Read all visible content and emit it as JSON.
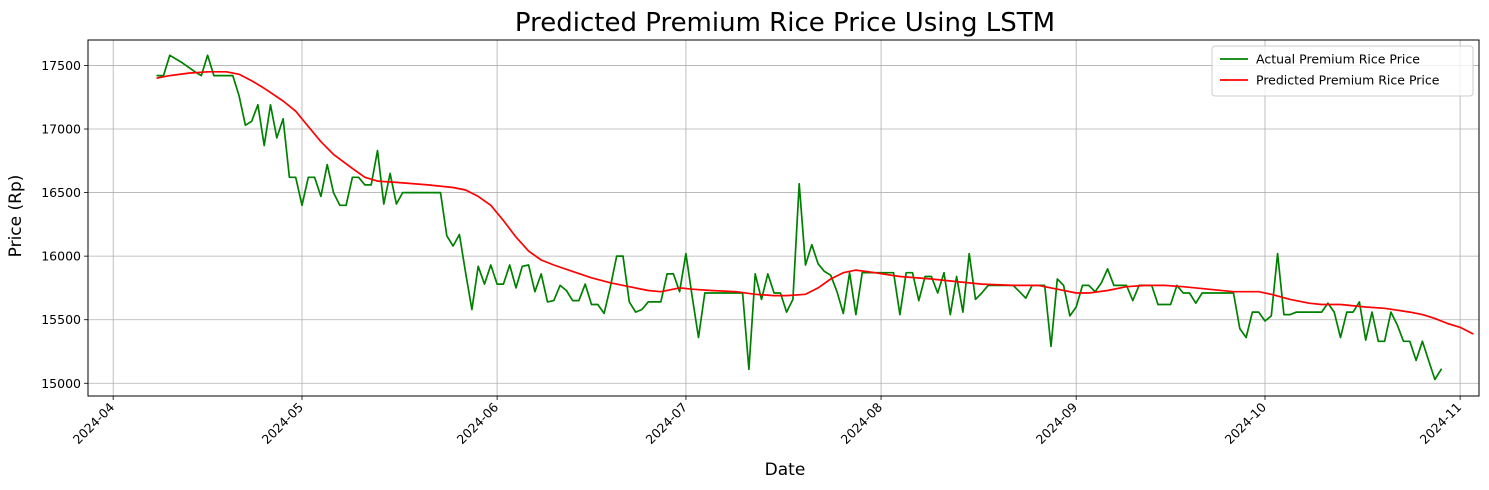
{
  "chart_data": {
    "type": "line",
    "title": "Predicted Premium Rice Price Using LSTM",
    "xlabel": "Date",
    "ylabel": "Price (Rp)",
    "grid": true,
    "legend_position": "top-right",
    "xlim": [
      "2024-03-28",
      "2024-11-04"
    ],
    "ylim": [
      14900,
      17700
    ],
    "x_ticks": [
      "2024-04-01",
      "2024-05-01",
      "2024-06-01",
      "2024-07-01",
      "2024-08-01",
      "2024-09-01",
      "2024-10-01",
      "2024-11-01"
    ],
    "x_tick_labels": [
      "2024-04",
      "2024-05",
      "2024-06",
      "2024-07",
      "2024-08",
      "2024-09",
      "2024-10",
      "2024-11"
    ],
    "y_ticks": [
      15000,
      15500,
      16000,
      16500,
      17000,
      17500
    ],
    "y_tick_labels": [
      "15000",
      "15500",
      "16000",
      "16500",
      "17000",
      "17500"
    ],
    "series": [
      {
        "name": "Actual Premium Rice Price",
        "color": "#008000",
        "points": [
          [
            "2024-04-08",
            17420
          ],
          [
            "2024-04-09",
            17420
          ],
          [
            "2024-04-10",
            17580
          ],
          [
            "2024-04-12",
            17520
          ],
          [
            "2024-04-14",
            17450
          ],
          [
            "2024-04-15",
            17420
          ],
          [
            "2024-04-16",
            17580
          ],
          [
            "2024-04-17",
            17420
          ],
          [
            "2024-04-18",
            17420
          ],
          [
            "2024-04-19",
            17420
          ],
          [
            "2024-04-20",
            17420
          ],
          [
            "2024-04-21",
            17260
          ],
          [
            "2024-04-22",
            17030
          ],
          [
            "2024-04-23",
            17060
          ],
          [
            "2024-04-24",
            17190
          ],
          [
            "2024-04-25",
            16870
          ],
          [
            "2024-04-26",
            17190
          ],
          [
            "2024-04-27",
            16930
          ],
          [
            "2024-04-28",
            17080
          ],
          [
            "2024-04-29",
            16620
          ],
          [
            "2024-04-30",
            16620
          ],
          [
            "2024-05-01",
            16400
          ],
          [
            "2024-05-02",
            16620
          ],
          [
            "2024-05-03",
            16620
          ],
          [
            "2024-05-04",
            16470
          ],
          [
            "2024-05-05",
            16720
          ],
          [
            "2024-05-06",
            16500
          ],
          [
            "2024-05-07",
            16400
          ],
          [
            "2024-05-08",
            16400
          ],
          [
            "2024-05-09",
            16620
          ],
          [
            "2024-05-10",
            16620
          ],
          [
            "2024-05-11",
            16560
          ],
          [
            "2024-05-12",
            16560
          ],
          [
            "2024-05-13",
            16830
          ],
          [
            "2024-05-14",
            16410
          ],
          [
            "2024-05-15",
            16650
          ],
          [
            "2024-05-16",
            16410
          ],
          [
            "2024-05-17",
            16500
          ],
          [
            "2024-05-22",
            16500
          ],
          [
            "2024-05-23",
            16500
          ],
          [
            "2024-05-24",
            16160
          ],
          [
            "2024-05-25",
            16080
          ],
          [
            "2024-05-26",
            16170
          ],
          [
            "2024-05-27",
            15870
          ],
          [
            "2024-05-28",
            15580
          ],
          [
            "2024-05-29",
            15920
          ],
          [
            "2024-05-30",
            15780
          ],
          [
            "2024-05-31",
            15930
          ],
          [
            "2024-06-01",
            15780
          ],
          [
            "2024-06-02",
            15780
          ],
          [
            "2024-06-03",
            15930
          ],
          [
            "2024-06-04",
            15750
          ],
          [
            "2024-06-05",
            15920
          ],
          [
            "2024-06-06",
            15930
          ],
          [
            "2024-06-07",
            15720
          ],
          [
            "2024-06-08",
            15860
          ],
          [
            "2024-06-09",
            15640
          ],
          [
            "2024-06-10",
            15650
          ],
          [
            "2024-06-11",
            15770
          ],
          [
            "2024-06-12",
            15730
          ],
          [
            "2024-06-13",
            15650
          ],
          [
            "2024-06-14",
            15650
          ],
          [
            "2024-06-15",
            15780
          ],
          [
            "2024-06-16",
            15620
          ],
          [
            "2024-06-17",
            15620
          ],
          [
            "2024-06-18",
            15550
          ],
          [
            "2024-06-19",
            15760
          ],
          [
            "2024-06-20",
            16000
          ],
          [
            "2024-06-21",
            16000
          ],
          [
            "2024-06-22",
            15640
          ],
          [
            "2024-06-23",
            15560
          ],
          [
            "2024-06-24",
            15580
          ],
          [
            "2024-06-25",
            15640
          ],
          [
            "2024-06-26",
            15640
          ],
          [
            "2024-06-27",
            15640
          ],
          [
            "2024-06-28",
            15860
          ],
          [
            "2024-06-29",
            15860
          ],
          [
            "2024-06-30",
            15720
          ],
          [
            "2024-07-01",
            16020
          ],
          [
            "2024-07-02",
            15680
          ],
          [
            "2024-07-03",
            15360
          ],
          [
            "2024-07-04",
            15710
          ],
          [
            "2024-07-06",
            15710
          ],
          [
            "2024-07-08",
            15710
          ],
          [
            "2024-07-10",
            15710
          ],
          [
            "2024-07-11",
            15110
          ],
          [
            "2024-07-12",
            15860
          ],
          [
            "2024-07-13",
            15660
          ],
          [
            "2024-07-14",
            15860
          ],
          [
            "2024-07-15",
            15710
          ],
          [
            "2024-07-16",
            15710
          ],
          [
            "2024-07-17",
            15560
          ],
          [
            "2024-07-18",
            15660
          ],
          [
            "2024-07-19",
            16570
          ],
          [
            "2024-07-20",
            15930
          ],
          [
            "2024-07-21",
            16090
          ],
          [
            "2024-07-22",
            15940
          ],
          [
            "2024-07-23",
            15880
          ],
          [
            "2024-07-24",
            15850
          ],
          [
            "2024-07-25",
            15720
          ],
          [
            "2024-07-26",
            15550
          ],
          [
            "2024-07-27",
            15870
          ],
          [
            "2024-07-28",
            15540
          ],
          [
            "2024-07-29",
            15870
          ],
          [
            "2024-07-30",
            15870
          ],
          [
            "2024-08-01",
            15870
          ],
          [
            "2024-08-02",
            15870
          ],
          [
            "2024-08-03",
            15870
          ],
          [
            "2024-08-04",
            15540
          ],
          [
            "2024-08-05",
            15870
          ],
          [
            "2024-08-06",
            15870
          ],
          [
            "2024-08-07",
            15650
          ],
          [
            "2024-08-08",
            15840
          ],
          [
            "2024-08-09",
            15840
          ],
          [
            "2024-08-10",
            15710
          ],
          [
            "2024-08-11",
            15870
          ],
          [
            "2024-08-12",
            15540
          ],
          [
            "2024-08-13",
            15840
          ],
          [
            "2024-08-14",
            15560
          ],
          [
            "2024-08-15",
            16020
          ],
          [
            "2024-08-16",
            15660
          ],
          [
            "2024-08-17",
            15710
          ],
          [
            "2024-08-18",
            15770
          ],
          [
            "2024-08-20",
            15770
          ],
          [
            "2024-08-22",
            15770
          ],
          [
            "2024-08-23",
            15720
          ],
          [
            "2024-08-24",
            15670
          ],
          [
            "2024-08-25",
            15770
          ],
          [
            "2024-08-26",
            15770
          ],
          [
            "2024-08-27",
            15770
          ],
          [
            "2024-08-28",
            15290
          ],
          [
            "2024-08-29",
            15820
          ],
          [
            "2024-08-30",
            15770
          ],
          [
            "2024-08-31",
            15530
          ],
          [
            "2024-09-01",
            15600
          ],
          [
            "2024-09-02",
            15770
          ],
          [
            "2024-09-03",
            15770
          ],
          [
            "2024-09-04",
            15720
          ],
          [
            "2024-09-05",
            15790
          ],
          [
            "2024-09-06",
            15900
          ],
          [
            "2024-09-07",
            15770
          ],
          [
            "2024-09-08",
            15770
          ],
          [
            "2024-09-09",
            15770
          ],
          [
            "2024-09-10",
            15650
          ],
          [
            "2024-09-11",
            15770
          ],
          [
            "2024-09-12",
            15770
          ],
          [
            "2024-09-13",
            15770
          ],
          [
            "2024-09-14",
            15620
          ],
          [
            "2024-09-15",
            15620
          ],
          [
            "2024-09-16",
            15620
          ],
          [
            "2024-09-17",
            15770
          ],
          [
            "2024-09-18",
            15710
          ],
          [
            "2024-09-19",
            15710
          ],
          [
            "2024-09-20",
            15630
          ],
          [
            "2024-09-21",
            15710
          ],
          [
            "2024-09-24",
            15710
          ],
          [
            "2024-09-25",
            15710
          ],
          [
            "2024-09-26",
            15710
          ],
          [
            "2024-09-27",
            15430
          ],
          [
            "2024-09-28",
            15360
          ],
          [
            "2024-09-29",
            15560
          ],
          [
            "2024-09-30",
            15560
          ],
          [
            "2024-10-01",
            15490
          ],
          [
            "2024-10-02",
            15530
          ],
          [
            "2024-10-03",
            16020
          ],
          [
            "2024-10-04",
            15540
          ],
          [
            "2024-10-05",
            15540
          ],
          [
            "2024-10-06",
            15560
          ],
          [
            "2024-10-07",
            15560
          ],
          [
            "2024-10-08",
            15560
          ],
          [
            "2024-10-09",
            15560
          ],
          [
            "2024-10-10",
            15560
          ],
          [
            "2024-10-11",
            15630
          ],
          [
            "2024-10-12",
            15560
          ],
          [
            "2024-10-13",
            15360
          ],
          [
            "2024-10-14",
            15560
          ],
          [
            "2024-10-15",
            15560
          ],
          [
            "2024-10-16",
            15640
          ],
          [
            "2024-10-17",
            15340
          ],
          [
            "2024-10-18",
            15560
          ],
          [
            "2024-10-19",
            15330
          ],
          [
            "2024-10-20",
            15330
          ],
          [
            "2024-10-21",
            15560
          ],
          [
            "2024-10-22",
            15460
          ],
          [
            "2024-10-23",
            15330
          ],
          [
            "2024-10-24",
            15330
          ],
          [
            "2024-10-25",
            15180
          ],
          [
            "2024-10-26",
            15330
          ],
          [
            "2024-10-27",
            15180
          ],
          [
            "2024-10-28",
            15030
          ],
          [
            "2024-10-29",
            15110
          ]
        ]
      },
      {
        "name": "Predicted Premium Rice Price",
        "color": "#ff0000",
        "points": [
          [
            "2024-04-08",
            17400
          ],
          [
            "2024-04-10",
            17420
          ],
          [
            "2024-04-13",
            17440
          ],
          [
            "2024-04-16",
            17450
          ],
          [
            "2024-04-19",
            17450
          ],
          [
            "2024-04-21",
            17430
          ],
          [
            "2024-04-23",
            17380
          ],
          [
            "2024-04-25",
            17320
          ],
          [
            "2024-04-28",
            17220
          ],
          [
            "2024-04-30",
            17140
          ],
          [
            "2024-05-02",
            17020
          ],
          [
            "2024-05-04",
            16900
          ],
          [
            "2024-05-06",
            16800
          ],
          [
            "2024-05-09",
            16690
          ],
          [
            "2024-05-11",
            16620
          ],
          [
            "2024-05-13",
            16590
          ],
          [
            "2024-05-16",
            16580
          ],
          [
            "2024-05-21",
            16560
          ],
          [
            "2024-05-25",
            16540
          ],
          [
            "2024-05-27",
            16520
          ],
          [
            "2024-05-29",
            16470
          ],
          [
            "2024-05-31",
            16400
          ],
          [
            "2024-06-02",
            16280
          ],
          [
            "2024-06-04",
            16150
          ],
          [
            "2024-06-06",
            16040
          ],
          [
            "2024-06-08",
            15970
          ],
          [
            "2024-06-10",
            15930
          ],
          [
            "2024-06-13",
            15880
          ],
          [
            "2024-06-16",
            15830
          ],
          [
            "2024-06-19",
            15790
          ],
          [
            "2024-06-22",
            15760
          ],
          [
            "2024-06-25",
            15730
          ],
          [
            "2024-06-27",
            15720
          ],
          [
            "2024-06-30",
            15750
          ],
          [
            "2024-07-02",
            15740
          ],
          [
            "2024-07-05",
            15730
          ],
          [
            "2024-07-09",
            15720
          ],
          [
            "2024-07-12",
            15700
          ],
          [
            "2024-07-15",
            15690
          ],
          [
            "2024-07-17",
            15690
          ],
          [
            "2024-07-20",
            15700
          ],
          [
            "2024-07-22",
            15750
          ],
          [
            "2024-07-24",
            15820
          ],
          [
            "2024-07-26",
            15870
          ],
          [
            "2024-07-28",
            15890
          ],
          [
            "2024-07-31",
            15870
          ],
          [
            "2024-08-04",
            15840
          ],
          [
            "2024-08-09",
            15820
          ],
          [
            "2024-08-13",
            15800
          ],
          [
            "2024-08-17",
            15780
          ],
          [
            "2024-08-22",
            15770
          ],
          [
            "2024-08-26",
            15770
          ],
          [
            "2024-08-29",
            15740
          ],
          [
            "2024-09-01",
            15710
          ],
          [
            "2024-09-03",
            15710
          ],
          [
            "2024-09-06",
            15730
          ],
          [
            "2024-09-09",
            15760
          ],
          [
            "2024-09-12",
            15770
          ],
          [
            "2024-09-15",
            15770
          ],
          [
            "2024-09-18",
            15760
          ],
          [
            "2024-09-22",
            15740
          ],
          [
            "2024-09-26",
            15720
          ],
          [
            "2024-09-30",
            15720
          ],
          [
            "2024-10-02",
            15700
          ],
          [
            "2024-10-05",
            15660
          ],
          [
            "2024-10-08",
            15630
          ],
          [
            "2024-10-10",
            15620
          ],
          [
            "2024-10-13",
            15620
          ],
          [
            "2024-10-17",
            15600
          ],
          [
            "2024-10-20",
            15590
          ],
          [
            "2024-10-24",
            15560
          ],
          [
            "2024-10-26",
            15540
          ],
          [
            "2024-10-28",
            15510
          ],
          [
            "2024-10-30",
            15470
          ],
          [
            "2024-11-01",
            15440
          ],
          [
            "2024-11-03",
            15390
          ]
        ]
      }
    ]
  }
}
